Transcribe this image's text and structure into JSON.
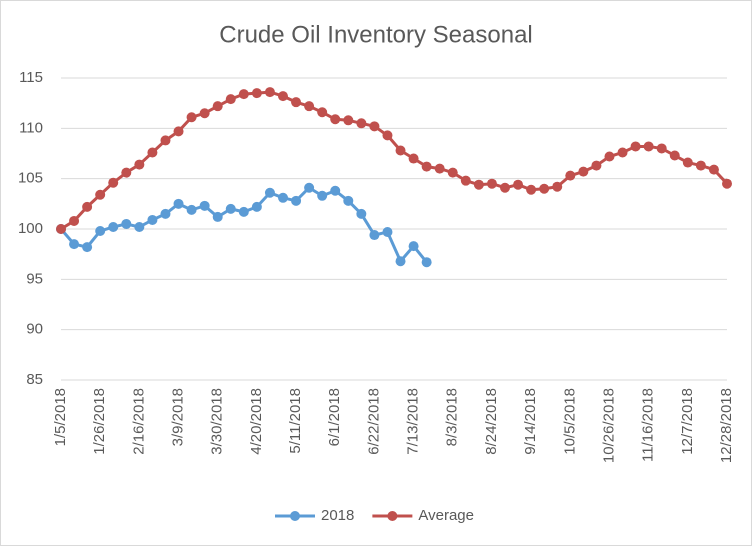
{
  "chart_data": {
    "type": "line",
    "title": "Crude Oil Inventory Seasonal",
    "categories": [
      "1/5/2018",
      null,
      null,
      "1/26/2018",
      null,
      null,
      "2/16/2018",
      null,
      null,
      "3/9/2018",
      null,
      null,
      "3/30/2018",
      null,
      null,
      "4/20/2018",
      null,
      null,
      "5/11/2018",
      null,
      null,
      "6/1/2018",
      null,
      null,
      "6/22/2018",
      null,
      null,
      "7/13/2018",
      null,
      null,
      "8/3/2018",
      null,
      null,
      "8/24/2018",
      null,
      null,
      "9/14/2018",
      null,
      null,
      "10/5/2018",
      null,
      null,
      "10/26/2018",
      null,
      null,
      "11/16/2018",
      null,
      null,
      "12/7/2018",
      null,
      null,
      "12/28/2018"
    ],
    "series": [
      {
        "name": "2018",
        "color": "#5b9bd5",
        "values": [
          100,
          98.5,
          98.2,
          99.8,
          100.2,
          100.5,
          100.2,
          100.9,
          101.5,
          102.5,
          101.9,
          102.3,
          101.2,
          102.0,
          101.7,
          102.2,
          103.6,
          103.1,
          102.8,
          104.1,
          103.3,
          103.8,
          102.8,
          101.5,
          99.4,
          99.7,
          96.8,
          98.3,
          96.7,
          null,
          null,
          null,
          null,
          null,
          null,
          null,
          null,
          null,
          null,
          null,
          null,
          null,
          null,
          null,
          null,
          null,
          null,
          null,
          null,
          null,
          null,
          null
        ]
      },
      {
        "name": "Average",
        "color": "#c0504d",
        "values": [
          100,
          100.8,
          102.2,
          103.4,
          104.6,
          105.6,
          106.4,
          107.6,
          108.8,
          109.7,
          111.1,
          111.5,
          112.2,
          112.9,
          113.4,
          113.5,
          113.6,
          113.2,
          112.6,
          112.2,
          111.6,
          110.9,
          110.8,
          110.5,
          110.2,
          109.3,
          107.8,
          107.0,
          106.2,
          106.0,
          105.6,
          104.8,
          104.4,
          104.5,
          104.1,
          104.4,
          103.9,
          104.0,
          104.2,
          105.3,
          105.7,
          106.3,
          107.2,
          107.6,
          108.2,
          108.2,
          108.0,
          107.3,
          106.6,
          106.3,
          105.9,
          104.5
        ]
      }
    ],
    "ylim": [
      85,
      115
    ],
    "yticks": [
      85,
      90,
      95,
      100,
      105,
      110,
      115
    ],
    "grid": true,
    "legend": "bottom"
  }
}
